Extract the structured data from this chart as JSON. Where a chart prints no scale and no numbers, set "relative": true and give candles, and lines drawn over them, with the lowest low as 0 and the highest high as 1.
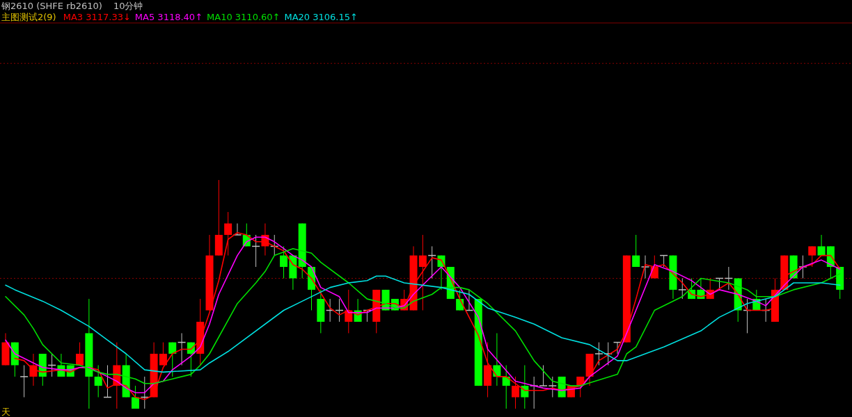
{
  "chart_data": {
    "type": "candlestick",
    "title": "钢2610 (SHFE rb2610)",
    "subtitle": "10分钟",
    "annotations": [
      "主图测试2(9)",
      "天"
    ],
    "relative": true,
    "legend": "top left",
    "grid": false,
    "categories": [
      null,
      null,
      null,
      null,
      null,
      null,
      null,
      null,
      null,
      null,
      null,
      null,
      null,
      null,
      null,
      null,
      null,
      null,
      null,
      null,
      null,
      null,
      null,
      null,
      null,
      null,
      null,
      null,
      null,
      null,
      null,
      null,
      null,
      null,
      null,
      null,
      null,
      null,
      null,
      null,
      null,
      null,
      null,
      null,
      null,
      null,
      null,
      null,
      null,
      null,
      null,
      null,
      null,
      null,
      null,
      null,
      null,
      null,
      null,
      null,
      null,
      null,
      null,
      null,
      null,
      null,
      null,
      null,
      null,
      null,
      null,
      null,
      null,
      null,
      null,
      null,
      null,
      null,
      null,
      null,
      null,
      null,
      null,
      null,
      null,
      null,
      null,
      null,
      null,
      null,
      null
    ],
    "ohlc": [
      [
        0.19,
        0.33,
        0.19,
        0.29
      ],
      [
        0.29,
        0.29,
        0.14,
        0.19
      ],
      [
        0.14,
        0.19,
        0.05,
        0.14
      ],
      [
        0.14,
        0.24,
        0.1,
        0.19
      ],
      [
        0.24,
        0.24,
        0.1,
        0.14
      ],
      [
        0.19,
        0.24,
        0.14,
        0.19
      ],
      [
        0.19,
        0.24,
        0.14,
        0.14
      ],
      [
        0.19,
        0.19,
        0.14,
        0.14
      ],
      [
        0.19,
        0.29,
        0.19,
        0.24
      ],
      [
        0.33,
        0.48,
        0,
        0.14
      ],
      [
        0.14,
        0.19,
        0.05,
        0.1
      ],
      [
        0.05,
        0.19,
        0.05,
        0.05
      ],
      [
        0.1,
        0.29,
        0,
        0.19
      ],
      [
        0.19,
        0.24,
        0.05,
        0.05
      ],
      [
        0.05,
        0.1,
        0,
        0
      ],
      [
        0.05,
        0.14,
        0,
        0.05
      ],
      [
        0.05,
        0.29,
        0.05,
        0.24
      ],
      [
        0.19,
        0.29,
        0.19,
        0.24
      ],
      [
        0.29,
        0.29,
        0.14,
        0.24
      ],
      [
        0.29,
        0.33,
        0.19,
        0.29
      ],
      [
        0.29,
        0.29,
        0.14,
        0.24
      ],
      [
        0.24,
        0.48,
        0.19,
        0.38
      ],
      [
        0.43,
        0.76,
        0.43,
        0.67
      ],
      [
        0.67,
        1,
        0.67,
        0.76
      ],
      [
        0.76,
        0.86,
        0.67,
        0.81
      ],
      [
        0.76,
        0.81,
        0.76,
        0.76
      ],
      [
        0.76,
        0.81,
        0.71,
        0.71
      ],
      [
        0.71,
        0.76,
        0.62,
        0.71
      ],
      [
        0.71,
        0.81,
        0.67,
        0.76
      ],
      [
        0.71,
        0.76,
        0.67,
        0.71
      ],
      [
        0.67,
        0.71,
        0.57,
        0.62
      ],
      [
        0.67,
        0.67,
        0.52,
        0.57
      ],
      [
        0.81,
        0.81,
        0.57,
        0.62
      ],
      [
        0.62,
        0.62,
        0.43,
        0.52
      ],
      [
        0.48,
        0.52,
        0.33,
        0.38
      ],
      [
        0.43,
        0.48,
        0.38,
        0.43
      ],
      [
        0.43,
        0.48,
        0.38,
        0.43
      ],
      [
        0.38,
        0.52,
        0.33,
        0.43
      ],
      [
        0.43,
        0.48,
        0.38,
        0.38
      ],
      [
        0.43,
        0.43,
        0.38,
        0.43
      ],
      [
        0.38,
        0.52,
        0.33,
        0.52
      ],
      [
        0.52,
        0.52,
        0.43,
        0.43
      ],
      [
        0.48,
        0.48,
        0.43,
        0.43
      ],
      [
        0.43,
        0.52,
        0.43,
        0.48
      ],
      [
        0.43,
        0.71,
        0.43,
        0.67
      ],
      [
        0.62,
        0.76,
        0.43,
        0.67
      ],
      [
        0.67,
        0.71,
        0.57,
        0.67
      ],
      [
        0.67,
        0.67,
        0.52,
        0.62
      ],
      [
        0.62,
        0.62,
        0.48,
        0.48
      ],
      [
        0.48,
        0.52,
        0.43,
        0.43
      ],
      [
        0.43,
        0.52,
        0.43,
        0.43
      ],
      [
        0.48,
        0.48,
        0.1,
        0.1
      ],
      [
        0.1,
        0.29,
        0.05,
        0.19
      ],
      [
        0.19,
        0.33,
        0.1,
        0.14
      ],
      [
        0.14,
        0.19,
        0,
        0.1
      ],
      [
        0.05,
        0.14,
        0,
        0.1
      ],
      [
        0.1,
        0.19,
        0,
        0.05
      ],
      [
        0.1,
        0.14,
        0,
        0.1
      ],
      [
        0.1,
        0.19,
        0.1,
        0.1
      ],
      [
        0.1,
        0.14,
        0.05,
        0.1
      ],
      [
        0.14,
        0.14,
        0.05,
        0.05
      ],
      [
        0.05,
        0.1,
        0.05,
        0.1
      ],
      [
        0.1,
        0.14,
        0.05,
        0.14
      ],
      [
        0.14,
        0.24,
        0.1,
        0.24
      ],
      [
        0.24,
        0.29,
        0.19,
        0.24
      ],
      [
        0.24,
        0.29,
        0.19,
        0.24
      ],
      [
        0.29,
        0.29,
        0.24,
        0.29
      ],
      [
        0.29,
        0.67,
        0.29,
        0.67
      ],
      [
        0.67,
        0.76,
        0.62,
        0.62
      ],
      [
        0.62,
        0.67,
        0.57,
        0.62
      ],
      [
        0.57,
        0.67,
        0.57,
        0.62
      ],
      [
        0.67,
        0.67,
        0.62,
        0.67
      ],
      [
        0.67,
        0.67,
        0.48,
        0.52
      ],
      [
        0.52,
        0.57,
        0.48,
        0.52
      ],
      [
        0.52,
        0.57,
        0.48,
        0.48
      ],
      [
        0.52,
        0.57,
        0.48,
        0.48
      ],
      [
        0.48,
        0.57,
        0.48,
        0.52
      ],
      [
        0.57,
        0.57,
        0.52,
        0.57
      ],
      [
        0.57,
        0.62,
        0.52,
        0.57
      ],
      [
        0.57,
        0.57,
        0.38,
        0.43
      ],
      [
        0.43,
        0.48,
        0.33,
        0.43
      ],
      [
        0.48,
        0.52,
        0.43,
        0.43
      ],
      [
        0.43,
        0.48,
        0.38,
        0.43
      ],
      [
        0.38,
        0.57,
        0.38,
        0.52
      ],
      [
        0.52,
        0.67,
        0.52,
        0.67
      ],
      [
        0.67,
        0.67,
        0.57,
        0.57
      ],
      [
        0.62,
        0.67,
        0.57,
        0.62
      ],
      [
        0.67,
        0.71,
        0.62,
        0.71
      ],
      [
        0.71,
        0.76,
        0.67,
        0.67
      ],
      [
        0.71,
        0.71,
        0.57,
        0.62
      ],
      [
        0.62,
        0.62,
        0.48,
        0.52
      ]
    ],
    "colors": [
      "#ff0000",
      "#00ff00",
      "#c0c0c0",
      "#ff0000",
      "#00ff00",
      "#c0c0c0",
      "#00ff00",
      "#00ff00",
      "#ff0000",
      "#00ff00",
      "#00ff00",
      "#c0c0c0",
      "#ff0000",
      "#00ff00",
      "#00ff00",
      "#c0c0c0",
      "#ff0000",
      "#ff0000",
      "#00ff00",
      "#c0c0c0",
      "#00ff00",
      "#ff0000",
      "#ff0000",
      "#ff0000",
      "#ff0000",
      "#c0c0c0",
      "#00ff00",
      "#c0c0c0",
      "#ff0000",
      "#c0c0c0",
      "#00ff00",
      "#00ff00",
      "#00ff00",
      "#00ff00",
      "#00ff00",
      "#c0c0c0",
      "#c0c0c0",
      "#ff0000",
      "#00ff00",
      "#c0c0c0",
      "#ff0000",
      "#00ff00",
      "#00ff00",
      "#ff0000",
      "#ff0000",
      "#ff0000",
      "#c0c0c0",
      "#00ff00",
      "#00ff00",
      "#00ff00",
      "#c0c0c0",
      "#00ff00",
      "#ff0000",
      "#00ff00",
      "#00ff00",
      "#ff0000",
      "#00ff00",
      "#c0c0c0",
      "#c0c0c0",
      "#c0c0c0",
      "#00ff00",
      "#ff0000",
      "#ff0000",
      "#ff0000",
      "#c0c0c0",
      "#c0c0c0",
      "#c0c0c0",
      "#ff0000",
      "#00ff00",
      "#c0c0c0",
      "#ff0000",
      "#c0c0c0",
      "#00ff00",
      "#c0c0c0",
      "#00ff00",
      "#00ff00",
      "#ff0000",
      "#c0c0c0",
      "#c0c0c0",
      "#00ff00",
      "#c0c0c0",
      "#00ff00",
      "#c0c0c0",
      "#ff0000",
      "#ff0000",
      "#00ff00",
      "#c0c0c0",
      "#ff0000",
      "#00ff00",
      "#00ff00",
      "#00ff00"
    ],
    "series": [
      {
        "name": "MA3 3117.33↓",
        "color": "#ff0000",
        "type": "line",
        "values": [
          null,
          0.22,
          0.21,
          0.17,
          0.16,
          null,
          0.17,
          0.16,
          0.18,
          0.18,
          0.17,
          0.09,
          0.11,
          0.1,
          0.05,
          0.04,
          0.06,
          0.18,
          0.24,
          0.26,
          0.26,
          0.3,
          0.42,
          0.56,
          0.74,
          0.77,
          0.76,
          0.73,
          0.73,
          0.71,
          0.69,
          0.63,
          0.61,
          0.57,
          null,
          0.44,
          0.41,
          0.43,
          0.41,
          0.43,
          null,
          0.46,
          0.46,
          0.44,
          0.54,
          0.6,
          0.66,
          0.65,
          0.57,
          0.48,
          null,
          0.32,
          0.2,
          0.14,
          0.14,
          0.11,
          0.08,
          null,
          0.08,
          0.09,
          0.08,
          null,
          0.1,
          0.14,
          0.21,
          null,
          0.26,
          0.34,
          0.48,
          0.63,
          0.62,
          0.63,
          null,
          0.55,
          0.5,
          0.49,
          0.5,
          null,
          0.55,
          0.5,
          0.43,
          null,
          0.43,
          0.44,
          0.58,
          null,
          0.62,
          0.63,
          0.67,
          0.67,
          0.61
        ]
      },
      {
        "name": "MA5 3118.40↑",
        "color": "#ff00ff",
        "type": "line",
        "values": [
          0.3,
          0.24,
          null,
          0.2,
          0.18,
          null,
          0.17,
          0.17,
          0.18,
          0.18,
          0.16,
          0.14,
          0.12,
          0.09,
          0.07,
          0.07,
          0.11,
          0.12,
          0.17,
          null,
          0.23,
          0.27,
          0.37,
          0.5,
          null,
          0.67,
          0.73,
          0.75,
          0.75,
          0.73,
          0.7,
          0.67,
          0.65,
          0.62,
          0.53,
          null,
          0.49,
          0.42,
          null,
          0.42,
          0.44,
          null,
          0.44,
          0.45,
          0.5,
          0.54,
          null,
          0.62,
          null,
          0.53,
          null,
          0.4,
          0.26,
          null,
          null,
          0.12,
          0.11,
          null,
          0.09,
          null,
          0.08,
          null,
          0.09,
          0.14,
          null,
          null,
          0.23,
          0.33,
          null,
          null,
          0.63,
          null,
          0.6,
          null,
          0.56,
          null,
          0.5,
          0.52,
          null,
          0.5,
          null,
          0.47,
          0.45,
          null,
          0.54,
          null,
          0.62,
          null,
          0.65,
          null,
          0.61
        ]
      },
      {
        "name": "MA10 3110.60↑",
        "color": "#00e000",
        "type": "line",
        "values": [
          0.49,
          null,
          0.41,
          0.35,
          0.28,
          null,
          0.2,
          null,
          0.19,
          null,
          0.16,
          0.15,
          0.15,
          null,
          0.13,
          0.11,
          0.11,
          0.12,
          0.13,
          null,
          0.15,
          0.19,
          0.24,
          null,
          null,
          0.46,
          null,
          0.55,
          0.6,
          0.67,
          null,
          0.7,
          null,
          0.68,
          0.64,
          null,
          null,
          0.55,
          null,
          0.48,
          null,
          0.46,
          0.44,
          0.44,
          0.47,
          null,
          0.5,
          0.53,
          null,
          0.53,
          0.52,
          null,
          0.46,
          null,
          null,
          0.34,
          null,
          0.21,
          null,
          0.12,
          null,
          0.1,
          0.1,
          null,
          null,
          null,
          0.15,
          0.24,
          0.27,
          null,
          0.43,
          null,
          null,
          0.49,
          null,
          0.57,
          null,
          null,
          0.55,
          null,
          0.52,
          0.49,
          null,
          0.49,
          null,
          0.52,
          null,
          null,
          0.55,
          0.57,
          0.59
        ]
      },
      {
        "name": "MA20 3106.15↑",
        "color": "#00e0e0",
        "type": "line",
        "values": [
          0.54,
          0.52,
          null,
          null,
          0.47,
          null,
          0.43,
          null,
          null,
          0.36,
          null,
          0.3,
          null,
          0.24,
          null,
          0.17,
          null,
          0.16,
          null,
          null,
          null,
          0.17,
          0.2,
          null,
          0.25,
          null,
          null,
          null,
          null,
          null,
          0.43,
          null,
          0.47,
          null,
          null,
          0.53,
          null,
          0.55,
          null,
          0.56,
          0.58,
          0.58,
          null,
          0.55,
          null,
          null,
          null,
          0.53,
          null,
          null,
          0.5,
          null,
          0.44,
          null,
          null,
          0.4,
          null,
          0.37,
          null,
          null,
          0.31,
          null,
          null,
          0.28,
          null,
          null,
          0.21,
          0.21,
          null,
          null,
          null,
          0.27,
          null,
          null,
          null,
          0.34,
          null,
          0.4,
          null,
          null,
          0.46,
          null,
          null,
          0.49,
          null,
          0.55,
          null,
          null,
          0.55,
          null,
          0.54
        ]
      }
    ],
    "ref_lines": [
      {
        "axis": "y",
        "value": 0.57,
        "color": "#8b0000",
        "line_style": "dotted"
      },
      {
        "axis": "y",
        "value": 1.51,
        "color": "#8b0000",
        "line_style": "dotted"
      }
    ]
  }
}
